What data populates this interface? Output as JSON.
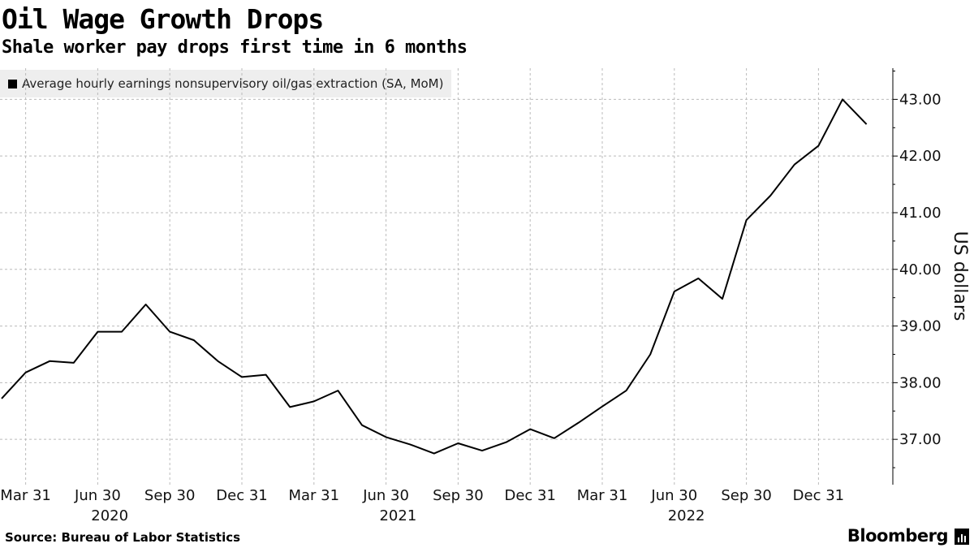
{
  "header": {
    "title": "Oil Wage Growth Drops",
    "subtitle": "Shale worker pay drops first time in 6 months"
  },
  "footer": {
    "source": "Source: Bureau of Labor Statistics",
    "brand": "Bloomberg"
  },
  "colors": {
    "line": "#000000",
    "grid": "#bbbbbb",
    "legend_bg": "#eeeeee"
  },
  "chart_data": {
    "type": "line",
    "title": "Oil Wage Growth Drops",
    "subtitle": "Shale worker pay drops first time in 6 months",
    "ylabel": "US dollars",
    "xlabel": "",
    "ylim": [
      36.2,
      43.55
    ],
    "yticks": [
      37.0,
      38.0,
      39.0,
      40.0,
      41.0,
      42.0,
      43.0
    ],
    "ytick_labels": [
      "37.00",
      "38.00",
      "39.00",
      "40.00",
      "41.00",
      "42.00",
      "43.00"
    ],
    "grid": true,
    "legend_position": "top-left",
    "xticks": [
      {
        "label": "Mar 31",
        "index": 1
      },
      {
        "label": "Jun 30",
        "index": 4
      },
      {
        "label": "Sep 30",
        "index": 7
      },
      {
        "label": "Dec 31",
        "index": 10
      },
      {
        "label": "Mar 31",
        "index": 13
      },
      {
        "label": "Jun 30",
        "index": 16
      },
      {
        "label": "Sep 30",
        "index": 19
      },
      {
        "label": "Dec 31",
        "index": 22
      },
      {
        "label": "Mar 31",
        "index": 25
      },
      {
        "label": "Jun 30",
        "index": 28
      },
      {
        "label": "Sep 30",
        "index": 31
      },
      {
        "label": "Dec 31",
        "index": 34
      }
    ],
    "year_labels": [
      {
        "label": "2020",
        "index": 4.5
      },
      {
        "label": "2021",
        "index": 16.5
      },
      {
        "label": "2022",
        "index": 28.5
      }
    ],
    "series": [
      {
        "name": "Average hourly earnings nonsupervisory oil/gas extraction (SA, MoM)",
        "x": [
          "2020-01",
          "2020-02",
          "2020-03",
          "2020-04",
          "2020-05",
          "2020-06",
          "2020-07",
          "2020-08",
          "2020-09",
          "2020-10",
          "2020-11",
          "2020-12",
          "2021-01",
          "2021-02",
          "2021-03",
          "2021-04",
          "2021-05",
          "2021-06",
          "2021-07",
          "2021-08",
          "2021-09",
          "2021-10",
          "2021-11",
          "2021-12",
          "2022-01",
          "2022-02",
          "2022-03",
          "2022-04",
          "2022-05",
          "2022-06",
          "2022-07",
          "2022-08",
          "2022-09",
          "2022-10",
          "2022-11",
          "2022-12",
          "2023-01"
        ],
        "values": [
          37.72,
          38.18,
          38.38,
          38.35,
          38.9,
          38.9,
          39.38,
          38.9,
          38.75,
          38.38,
          38.1,
          38.14,
          37.57,
          37.67,
          37.86,
          37.25,
          37.04,
          36.91,
          36.75,
          36.93,
          36.8,
          36.95,
          37.18,
          37.02,
          37.29,
          37.58,
          37.86,
          38.5,
          39.61,
          39.84,
          39.48,
          40.87,
          41.3,
          41.85,
          42.18,
          43.0,
          42.56
        ]
      }
    ]
  }
}
